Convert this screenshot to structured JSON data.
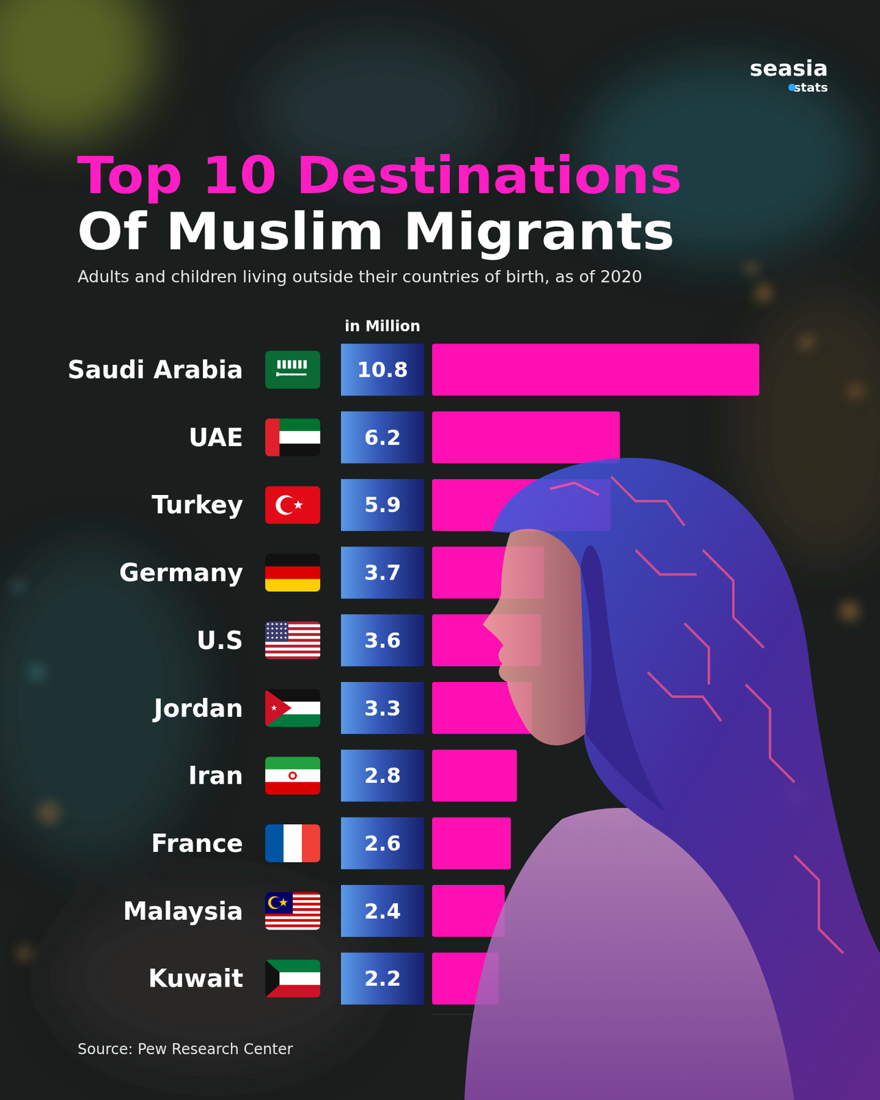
{
  "chart_data": {
    "type": "bar",
    "orientation": "horizontal",
    "title": "Top 10 Destinations Of Muslim Migrants",
    "subtitle": "Adults and children living outside their countries of birth, as of 2020",
    "xlabel": "in Million",
    "source": "Source: Pew Research Center",
    "brand": "seasia",
    "brand_tag": "stats",
    "categories": [
      "Saudi Arabia",
      "UAE",
      "Turkey",
      "Germany",
      "U.S",
      "Jordan",
      "Iran",
      "France",
      "Malaysia",
      "Kuwait"
    ],
    "values": [
      10.8,
      6.2,
      5.9,
      3.7,
      3.6,
      3.3,
      2.8,
      2.6,
      2.4,
      2.2
    ],
    "color": "#ff10b2",
    "xlim": [
      0,
      12
    ],
    "xticks": [],
    "tick_labels": "y",
    "data_labels": true,
    "grid": false
  }
}
